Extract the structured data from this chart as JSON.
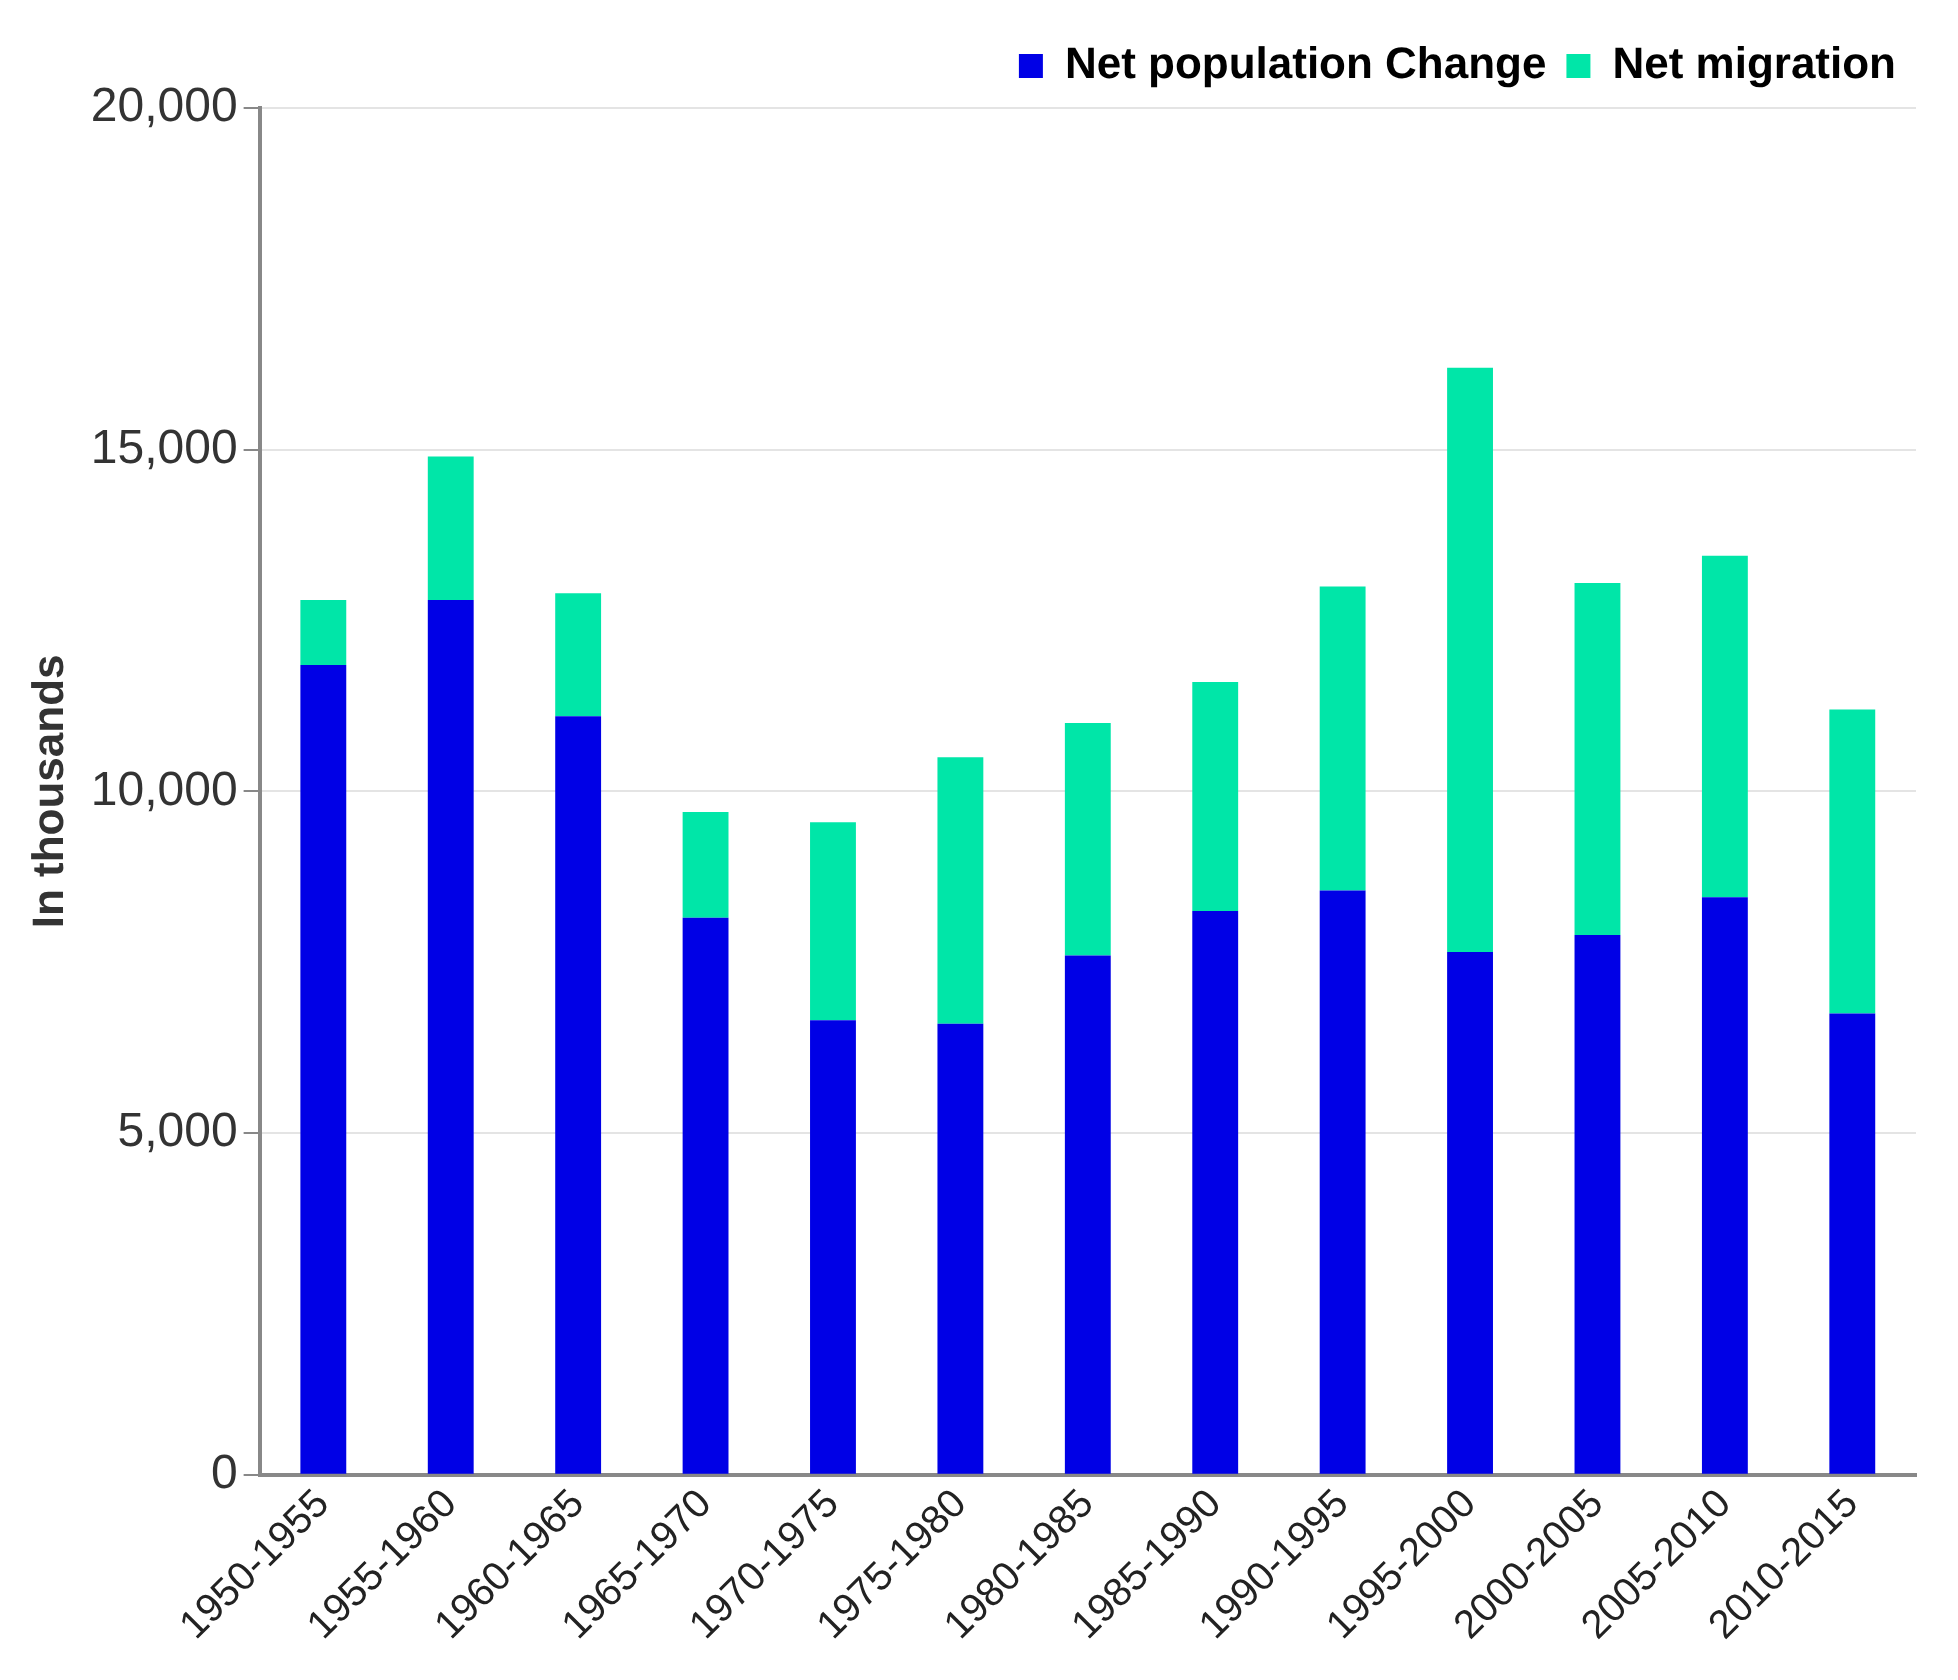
{
  "chart_data": {
    "type": "bar",
    "stacked": true,
    "ylabel": "In thousands",
    "categories": [
      "1950-1955",
      "1955-1960",
      "1960-1965",
      "1965-1970",
      "1970-1975",
      "1975-1980",
      "1980-1985",
      "1985-1990",
      "1990-1995",
      "1995-2000",
      "2000-2005",
      "2005-2010",
      "2010-2015"
    ],
    "series": [
      {
        "name": "Net population Change",
        "color": "#0000e6",
        "values": [
          11850,
          12800,
          11100,
          8150,
          6650,
          6600,
          7600,
          8250,
          8550,
          7650,
          7900,
          8450,
          6750
        ]
      },
      {
        "name": "Net migration",
        "color": "#00e6a8",
        "values": [
          950,
          2100,
          1800,
          1550,
          2900,
          3900,
          3400,
          3350,
          4450,
          8550,
          5150,
          5000,
          4450
        ]
      }
    ],
    "ylim": [
      0,
      20000
    ],
    "yticks": [
      {
        "value": 0,
        "label": "0"
      },
      {
        "value": 5000,
        "label": "5,000"
      },
      {
        "value": 10000,
        "label": "10,000"
      },
      {
        "value": 15000,
        "label": "15,000"
      },
      {
        "value": 20000,
        "label": "20,000"
      }
    ],
    "grid": "y",
    "legend": "top right"
  }
}
